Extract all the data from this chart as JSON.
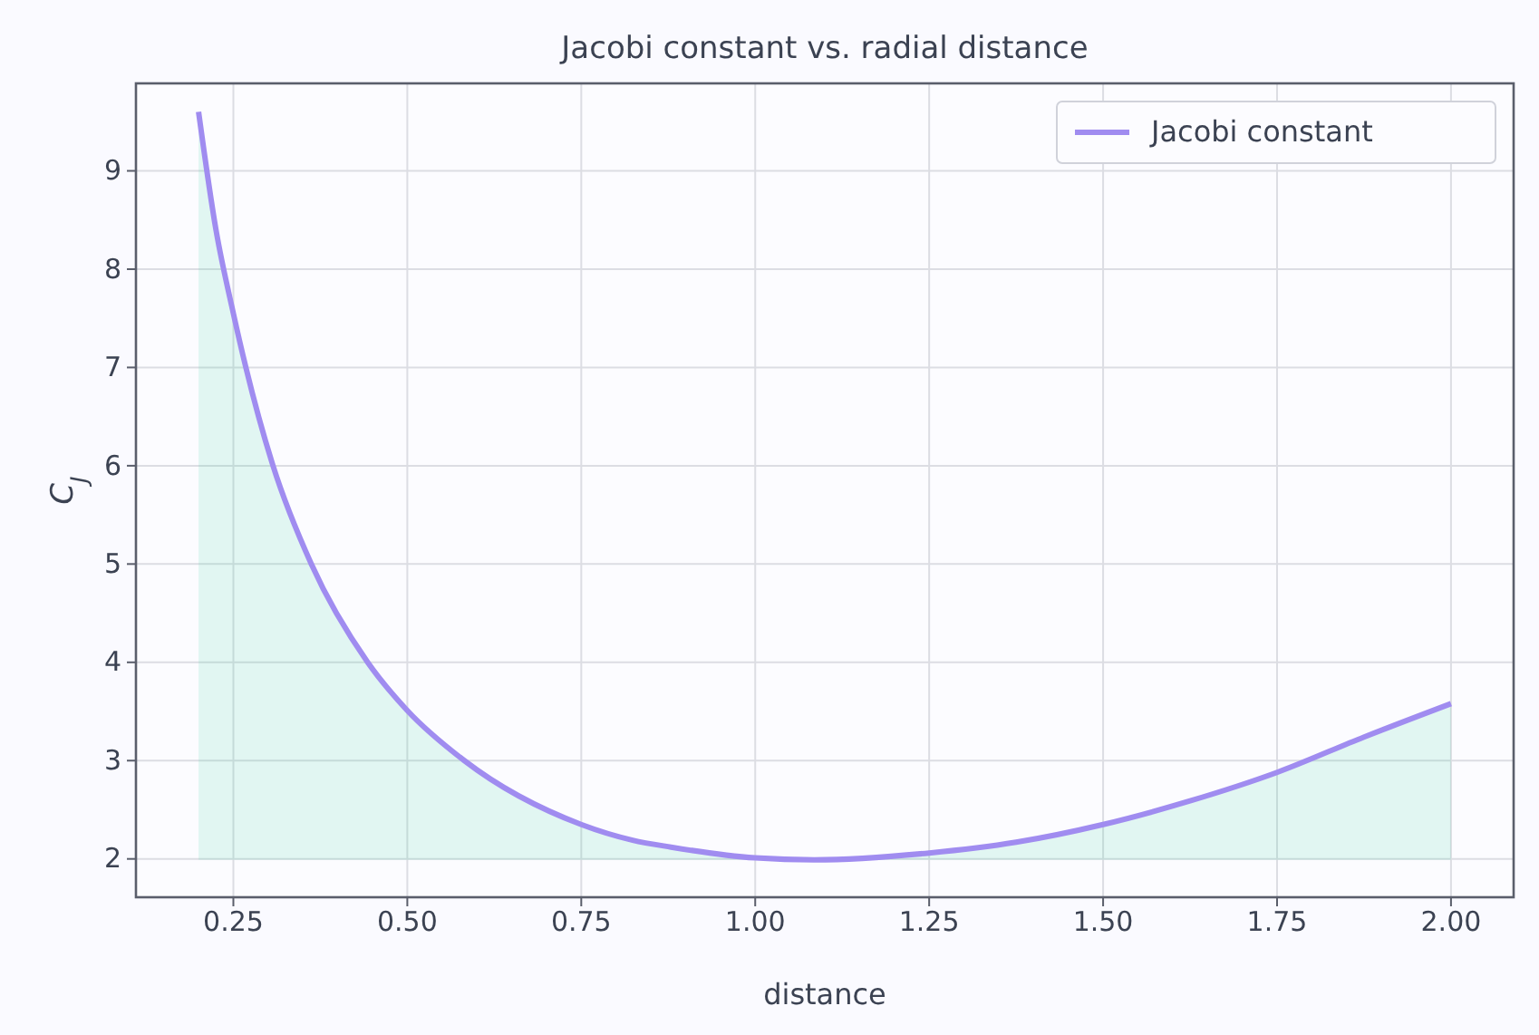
{
  "chart_data": {
    "type": "line",
    "title": "Jacobi constant vs. radial distance",
    "xlabel": "distance",
    "ylabel": "C$_{J}$",
    "xlim": [
      0.11,
      2.09
    ],
    "ylim": [
      1.61,
      9.89
    ],
    "xticks": [
      {
        "value": 0.25,
        "label": "0.25"
      },
      {
        "value": 0.5,
        "label": "0.50"
      },
      {
        "value": 0.75,
        "label": "0.75"
      },
      {
        "value": 1,
        "label": "1.00"
      },
      {
        "value": 1.25,
        "label": "1.25"
      },
      {
        "value": 1.5,
        "label": "1.50"
      },
      {
        "value": 1.75,
        "label": "1.75"
      },
      {
        "value": 2,
        "label": "2.00"
      }
    ],
    "yticks": [
      2,
      3,
      4,
      5,
      6,
      7,
      8,
      9
    ],
    "grid": true,
    "legend": "top right",
    "marker": "none",
    "line_style": "solid",
    "x": [
      0.2,
      0.225,
      0.25,
      0.268,
      0.307,
      0.362,
      0.443,
      0.5,
      0.582,
      0.75,
      0.824,
      0.879,
      1.0,
      1.085,
      1.25,
      1.375,
      1.5,
      1.625,
      1.75,
      1.875,
      2.0
    ],
    "series": [
      {
        "name": "Jacobi constant",
        "color": "#a08cf0",
        "values": [
          9.6,
          8.4,
          7.55,
          7.0,
          6.0,
          5.0,
          4.0,
          3.51,
          3.0,
          2.35,
          2.19,
          2.12,
          2.01,
          1.99,
          2.06,
          2.17,
          2.35,
          2.59,
          2.88,
          3.24,
          3.58
        ],
        "lower": [
          1.99,
          1.99,
          1.99,
          1.99,
          1.99,
          1.99,
          1.99,
          1.99,
          1.99,
          1.99,
          1.99,
          1.99,
          1.99,
          1.99,
          1.99,
          1.99,
          1.99,
          1.99,
          1.99,
          1.99,
          1.99
        ],
        "upper": [
          9.6,
          8.4,
          7.55,
          7.0,
          6.0,
          5.0,
          4.0,
          3.51,
          3.0,
          2.35,
          2.19,
          2.12,
          2.01,
          1.99,
          2.06,
          2.17,
          2.35,
          2.59,
          2.88,
          3.24,
          3.58
        ]
      }
    ]
  }
}
